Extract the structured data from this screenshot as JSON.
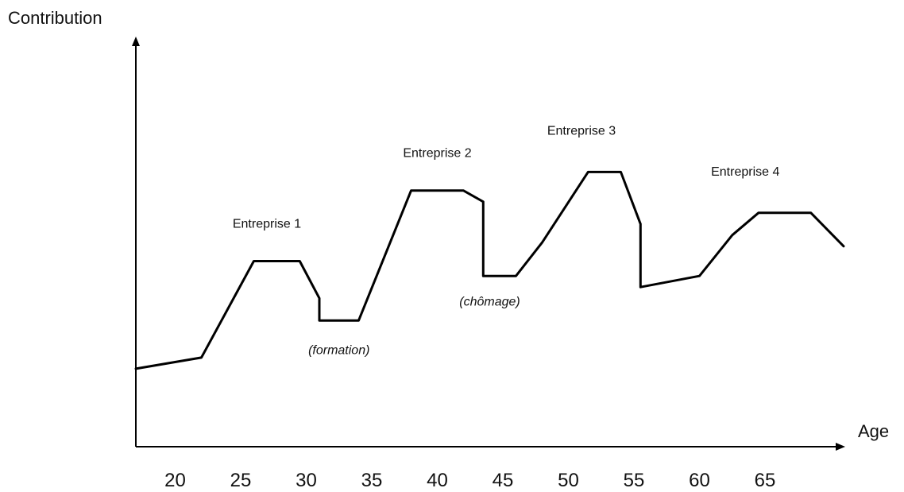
{
  "chart_data": {
    "type": "line",
    "title": "",
    "ylabel": "Contribution",
    "xlabel": "Age",
    "x_ticks": [
      "20",
      "25",
      "30",
      "35",
      "40",
      "45",
      "50",
      "55",
      "60",
      "65"
    ],
    "xlim": [
      17,
      71
    ],
    "ylim": [
      0,
      100
    ],
    "grid": false,
    "series": [
      {
        "x": [
          17,
          22,
          26,
          29.5,
          31,
          31,
          34,
          38,
          42,
          43.5,
          43.5,
          46,
          48,
          51.5,
          54,
          55.5,
          55.5,
          60,
          62.5,
          64.5,
          68.5,
          71
        ],
        "y": [
          21,
          24,
          50,
          50,
          40,
          34,
          34,
          69,
          69,
          66,
          46,
          46,
          55,
          74,
          74,
          60,
          43,
          46,
          57,
          63,
          63,
          54
        ]
      }
    ],
    "annotations": [
      {
        "text": "Entreprise 1",
        "x": 27,
        "y": 59,
        "style": "normal"
      },
      {
        "text": "Entreprise 2",
        "x": 40,
        "y": 78,
        "style": "normal"
      },
      {
        "text": "Entreprise 3",
        "x": 51,
        "y": 84,
        "style": "normal"
      },
      {
        "text": "Entreprise 4",
        "x": 63.5,
        "y": 73,
        "style": "normal"
      },
      {
        "text": "(formation)",
        "x": 32.5,
        "y": 25,
        "style": "italic"
      },
      {
        "text": "(chômage)",
        "x": 44,
        "y": 38,
        "style": "italic"
      }
    ],
    "axis_arrows": true
  }
}
